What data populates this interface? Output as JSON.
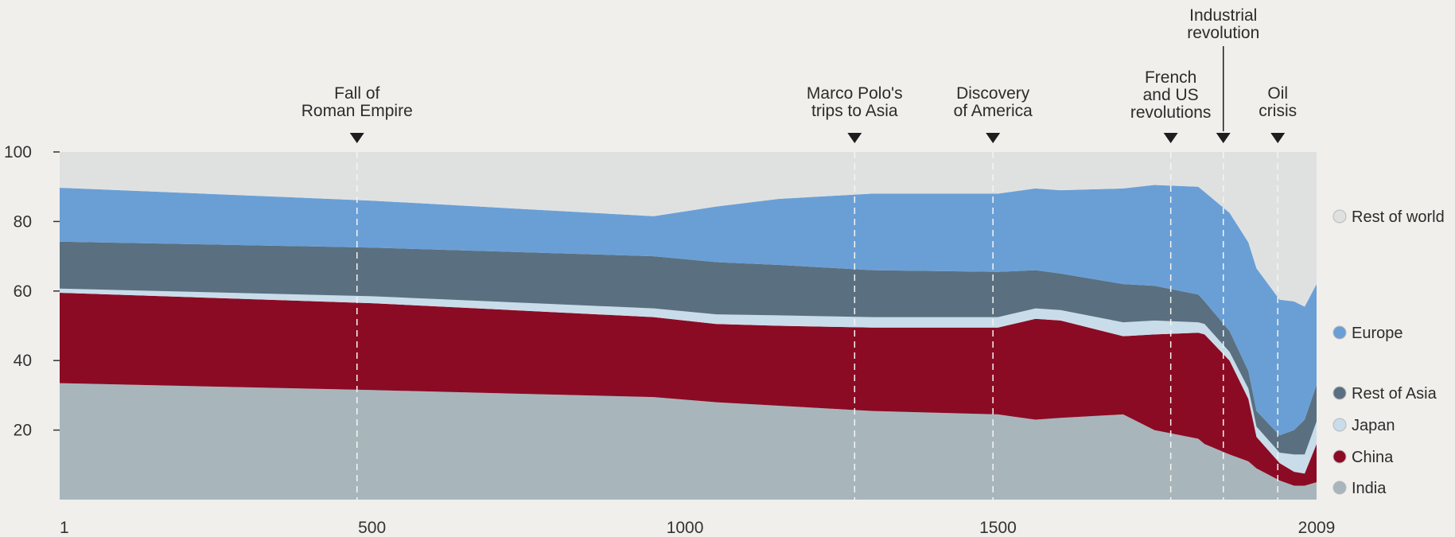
{
  "chart_data": {
    "type": "area",
    "stacked": true,
    "title": "",
    "xlabel": "",
    "ylabel": "",
    "xlim": [
      1,
      2009
    ],
    "ylim": [
      0,
      100
    ],
    "x": [
      1,
      500,
      950,
      1050,
      1150,
      1300,
      1500,
      1560,
      1600,
      1700,
      1750,
      1820,
      1830,
      1870,
      1900,
      1913,
      1950,
      1973,
      1990,
      2009
    ],
    "x_ticks": [
      "1",
      "500",
      "1000",
      "1500",
      "2009"
    ],
    "y_ticks": [
      "20",
      "40",
      "60",
      "80",
      "100"
    ],
    "series": [
      {
        "name": "India",
        "color": "#a8b6bc",
        "values": [
          33.5,
          31.5,
          29.5,
          28,
          27,
          25.5,
          24.5,
          23,
          23.5,
          24.5,
          20,
          17.5,
          16,
          13,
          11,
          9,
          5.5,
          4,
          4,
          5
        ]
      },
      {
        "name": "China",
        "color": "#8c0b24",
        "values": [
          26,
          25,
          23,
          22.5,
          23,
          24,
          25,
          29,
          28,
          22.5,
          27.5,
          30.5,
          31.5,
          27,
          18,
          9,
          5,
          4,
          3.5,
          11
        ]
      },
      {
        "name": "Japan",
        "color": "#c9dcea",
        "values": [
          1.2,
          2,
          2.5,
          2.8,
          3,
          3,
          3,
          3,
          3,
          4,
          4,
          3,
          3,
          2.5,
          3,
          3,
          3,
          5,
          5.5,
          6.5
        ]
      },
      {
        "name": "Rest of Asia",
        "color": "#5a7080",
        "values": [
          13.5,
          14,
          15,
          15,
          14.5,
          13.5,
          13,
          11,
          10.5,
          11,
          10,
          8,
          6.5,
          6,
          5,
          4.5,
          5,
          7,
          10,
          10.5
        ]
      },
      {
        "name": "Europe",
        "color": "#6a9fd6",
        "values": [
          15.5,
          13.5,
          11.5,
          16,
          19,
          22,
          22.5,
          23.5,
          24,
          27.5,
          29,
          31,
          31.5,
          34,
          37,
          41,
          39,
          37,
          32.5,
          29
        ]
      },
      {
        "name": "Rest of world",
        "color": "#dfe1e1",
        "values": [
          10.3,
          14,
          18.5,
          15.7,
          13.5,
          12,
          12,
          10.5,
          11,
          10.5,
          9.5,
          10,
          11.5,
          17.5,
          26,
          33.5,
          42.5,
          43,
          44.5,
          38
        ]
      }
    ],
    "annotations": [
      {
        "x": 476,
        "lines": [
          "Fall of",
          "Roman Empire"
        ]
      },
      {
        "x": 1271,
        "lines": [
          "Marco Polo's",
          "trips to Asia"
        ]
      },
      {
        "x": 1492,
        "lines": [
          "Discovery",
          "of America"
        ]
      },
      {
        "x": 1776,
        "lines": [
          "French",
          "and US",
          "revolutions"
        ]
      },
      {
        "x": 1860,
        "lines": [
          "Industrial",
          "revolution"
        ]
      },
      {
        "x": 1947,
        "lines": [
          "Oil",
          "crisis"
        ]
      }
    ],
    "legend_position": "right",
    "grid": false
  }
}
